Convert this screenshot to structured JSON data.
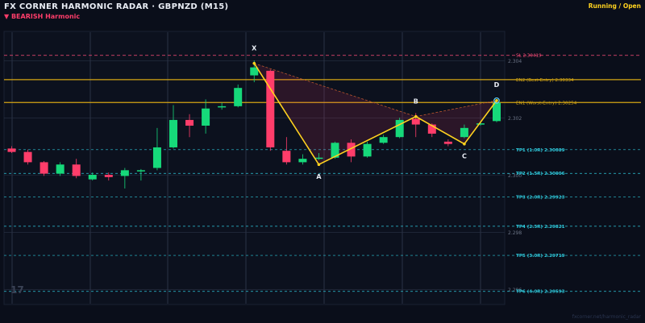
{
  "header": {
    "title": "FX CORNER HARMONIC RADAR  ·  GBPNZD (M15)",
    "subtitle": "▼ BEARISH  Harmonic",
    "status": "Running / Open"
  },
  "footer": {
    "url": "fxcorner.net/harmonic_radar"
  },
  "watermark": "17",
  "colors": {
    "background": "#0a0e1a",
    "bull": "#16d97a",
    "bear": "#ff3d6a",
    "pattern": "#ffd21f",
    "sl": "#ff4d7a",
    "entry": "#d4a514",
    "tp": "#2ec7d9",
    "grid": "#2a3245",
    "axis_text": "#6b7385"
  },
  "chart_data": {
    "type": "candlestick",
    "yaxis_ticks": [
      2.304,
      2.302,
      2.3,
      2.298,
      2.296
    ],
    "yaxis_tick_labels": [
      "2.304",
      "2.302",
      "2.300",
      "2.298",
      "2.296"
    ],
    "ylim": [
      2.2955,
      2.305
    ],
    "candles": [
      {
        "o": 2.30093,
        "h": 2.30101,
        "l": 2.30077,
        "c": 2.30081
      },
      {
        "o": 2.30081,
        "h": 2.30089,
        "l": 2.30037,
        "c": 2.30045
      },
      {
        "o": 2.30045,
        "h": 2.30049,
        "l": 2.29997,
        "c": 2.30005
      },
      {
        "o": 2.30005,
        "h": 2.30045,
        "l": 2.29997,
        "c": 2.30037
      },
      {
        "o": 2.30037,
        "h": 2.30057,
        "l": 2.29989,
        "c": 2.29997
      },
      {
        "o": 2.29985,
        "h": 2.30009,
        "l": 2.29981,
        "c": 2.30001
      },
      {
        "o": 2.30001,
        "h": 2.30009,
        "l": 2.29981,
        "c": 2.29993
      },
      {
        "o": 2.29997,
        "h": 2.30025,
        "l": 2.29953,
        "c": 2.30017
      },
      {
        "o": 2.30013,
        "h": 2.30021,
        "l": 2.29981,
        "c": 2.30017
      },
      {
        "o": 2.30025,
        "h": 2.30165,
        "l": 2.30017,
        "c": 2.30097
      },
      {
        "o": 2.30097,
        "h": 2.30245,
        "l": 2.30093,
        "c": 2.30193
      },
      {
        "o": 2.30193,
        "h": 2.30213,
        "l": 2.30133,
        "c": 2.30173
      },
      {
        "o": 2.30173,
        "h": 2.30265,
        "l": 2.30145,
        "c": 2.30233
      },
      {
        "o": 2.30237,
        "h": 2.30253,
        "l": 2.30229,
        "c": 2.30241
      },
      {
        "o": 2.30241,
        "h": 2.30317,
        "l": 2.30237,
        "c": 2.30305
      },
      {
        "o": 2.30349,
        "h": 2.30401,
        "l": 2.30325,
        "c": 2.30377
      },
      {
        "o": 2.30365,
        "h": 2.30369,
        "l": 2.30085,
        "c": 2.30097
      },
      {
        "o": 2.30085,
        "h": 2.30133,
        "l": 2.30037,
        "c": 2.30045
      },
      {
        "o": 2.30045,
        "h": 2.30073,
        "l": 2.30037,
        "c": 2.30057
      },
      {
        "o": 2.30057,
        "h": 2.30077,
        "l": 2.30053,
        "c": 2.30061
      },
      {
        "o": 2.30061,
        "h": 2.30117,
        "l": 2.30057,
        "c": 2.30113
      },
      {
        "o": 2.30113,
        "h": 2.30125,
        "l": 2.30045,
        "c": 2.30065
      },
      {
        "o": 2.30065,
        "h": 2.30117,
        "l": 2.30061,
        "c": 2.30109
      },
      {
        "o": 2.30113,
        "h": 2.30141,
        "l": 2.30109,
        "c": 2.30133
      },
      {
        "o": 2.30133,
        "h": 2.30201,
        "l": 2.30129,
        "c": 2.30193
      },
      {
        "o": 2.30197,
        "h": 2.30217,
        "l": 2.30133,
        "c": 2.30177
      },
      {
        "o": 2.30177,
        "h": 2.30181,
        "l": 2.30133,
        "c": 2.30145
      },
      {
        "o": 2.30117,
        "h": 2.30125,
        "l": 2.30101,
        "c": 2.30109
      },
      {
        "o": 2.30133,
        "h": 2.30177,
        "l": 2.30129,
        "c": 2.30165
      },
      {
        "o": 2.30177,
        "h": 2.30185,
        "l": 2.30173,
        "c": 2.30181
      },
      {
        "o": 2.30189,
        "h": 2.30261,
        "l": 2.30185,
        "c": 2.30253
      }
    ],
    "pattern": {
      "points": [
        {
          "label": "X",
          "index": 15,
          "price": 2.30391
        },
        {
          "label": "A",
          "index": 19,
          "price": 2.30037
        },
        {
          "label": "B",
          "index": 25,
          "price": 2.30205
        },
        {
          "label": "C",
          "index": 28,
          "price": 2.30109
        },
        {
          "label": "D",
          "index": 30,
          "price": 2.30261
        }
      ]
    },
    "levels": [
      {
        "kind": "sl",
        "label": "SL  2.30419",
        "price": 2.30419
      },
      {
        "kind": "entry",
        "label": "EN2 (Best-Entry)  2.30334",
        "price": 2.30334
      },
      {
        "kind": "entry",
        "label": "EN1 (Worst-Entry)  2.30254",
        "price": 2.30254
      },
      {
        "kind": "tp",
        "label": "TP1 (1.0R)  2.30089",
        "price": 2.30089
      },
      {
        "kind": "tp",
        "label": "TP2 (1.5R)  2.30006",
        "price": 2.30006
      },
      {
        "kind": "tp",
        "label": "TP3 (2.0R)  2.29923",
        "price": 2.29923
      },
      {
        "kind": "tp",
        "label": "TP4 (2.5R)  2.29821",
        "price": 2.29821
      },
      {
        "kind": "tp",
        "label": "TP5 (3.0R)  2.29719",
        "price": 2.29719
      },
      {
        "kind": "tp",
        "label": "TP6 (4.0R)  2.29593",
        "price": 2.29593
      }
    ]
  }
}
